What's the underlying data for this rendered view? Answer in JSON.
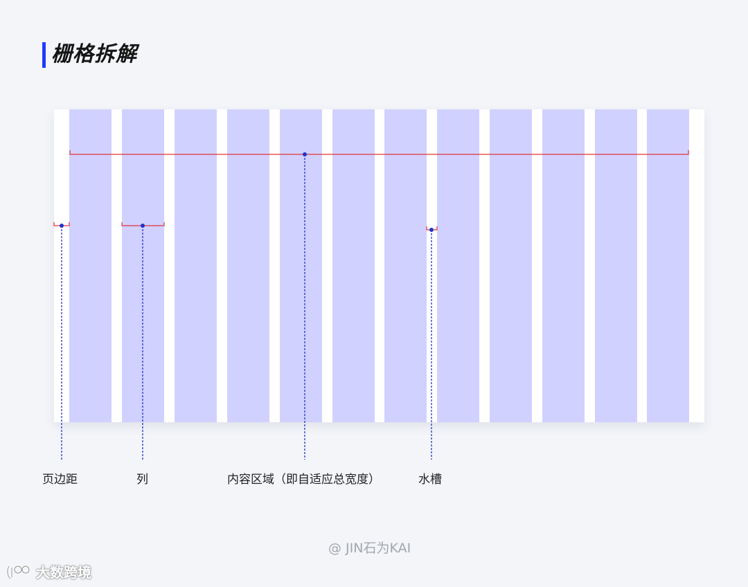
{
  "title": "栅格拆解",
  "grid": {
    "columns": 12,
    "labels": {
      "margin": "页边距",
      "column": "列",
      "content": "内容区域（即自适应总宽度）",
      "gutter": "水槽"
    }
  },
  "credit": "@ JIN石为KAI",
  "watermark": "大数跨境",
  "colors": {
    "accent": "#1f3bff",
    "column_fill": "#d1d1ff",
    "bracket": "#e0323c",
    "leader": "#2233cc"
  }
}
